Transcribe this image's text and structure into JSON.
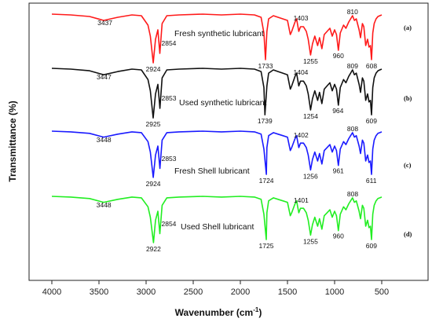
{
  "chart_data": {
    "type": "line",
    "xlabel": "Wavenumber (cm",
    "xlabel_sup": "-1",
    "xlabel_close": ")",
    "ylabel": "Transmittance (%)",
    "xlim": [
      4000,
      400
    ],
    "x_ticks": [
      4000,
      3500,
      3000,
      2500,
      2000,
      1500,
      1000,
      500
    ],
    "grid": false,
    "series": [
      {
        "name": "Fresh synthetic lubricant",
        "tag": "(a)",
        "color": "#ff1a1a",
        "peaks": [
          {
            "x": 3437,
            "label": "3437"
          },
          {
            "x": 2924,
            "label": "2924"
          },
          {
            "x": 2854,
            "label": "2854"
          },
          {
            "x": 1733,
            "label": "1733"
          },
          {
            "x": 1403,
            "label": "1403"
          },
          {
            "x": 1255,
            "label": "1255"
          },
          {
            "x": 960,
            "label": "960"
          },
          {
            "x": 810,
            "label": "810"
          },
          {
            "x": 608,
            "label": "608"
          }
        ]
      },
      {
        "name": "Used synthetic  lubricant",
        "tag": "(b)",
        "color": "#111111",
        "peaks": [
          {
            "x": 3447,
            "label": "3447"
          },
          {
            "x": 2925,
            "label": "2925"
          },
          {
            "x": 2853,
            "label": "2853"
          },
          {
            "x": 1739,
            "label": "1739"
          },
          {
            "x": 1404,
            "label": "1404"
          },
          {
            "x": 1254,
            "label": "1254"
          },
          {
            "x": 964,
            "label": "964"
          },
          {
            "x": 809,
            "label": "809"
          },
          {
            "x": 609,
            "label": "609"
          }
        ]
      },
      {
        "name": "Fresh Shell lubricant",
        "tag": "(c)",
        "color": "#1a1aff",
        "peaks": [
          {
            "x": 3448,
            "label": "3448"
          },
          {
            "x": 2924,
            "label": "2924"
          },
          {
            "x": 2853,
            "label": "2853"
          },
          {
            "x": 1724,
            "label": "1724"
          },
          {
            "x": 1402,
            "label": "1402"
          },
          {
            "x": 1256,
            "label": "1256"
          },
          {
            "x": 961,
            "label": "961"
          },
          {
            "x": 808,
            "label": "808"
          },
          {
            "x": 611,
            "label": "611"
          }
        ]
      },
      {
        "name": "Used Shell lubricant",
        "tag": "(d)",
        "color": "#22ee22",
        "peaks": [
          {
            "x": 3448,
            "label": "3448"
          },
          {
            "x": 2922,
            "label": "2922"
          },
          {
            "x": 2854,
            "label": "2854"
          },
          {
            "x": 1725,
            "label": "1725"
          },
          {
            "x": 1401,
            "label": "1401"
          },
          {
            "x": 1255,
            "label": "1255"
          },
          {
            "x": 960,
            "label": "960"
          },
          {
            "x": 808,
            "label": "808"
          },
          {
            "x": 609,
            "label": "609"
          }
        ]
      }
    ]
  }
}
